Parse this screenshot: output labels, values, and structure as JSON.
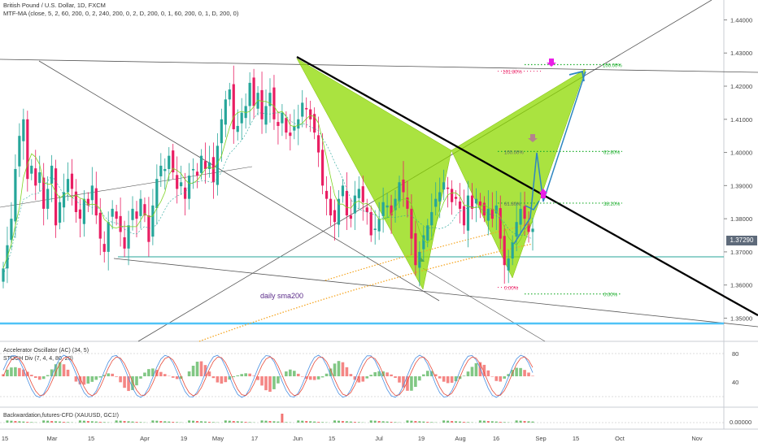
{
  "header": {
    "symbol_line": "British Pound / U.S. Dollar, 1D, FXCM",
    "indicator_line": "MTF-MA (close, 5, 2, 60, 200, 0, 2, 240, 200, 0, 2, D, 200, 0, 1, 60, 200, 0, 1, D, 200, 0)"
  },
  "price_badge": "1.37290",
  "price_axis": {
    "labels": [
      "1.44000",
      "1.43000",
      "1.42000",
      "1.41000",
      "1.40000",
      "1.39000",
      "1.38000",
      "1.37000",
      "1.36000",
      "1.35000"
    ],
    "min": 1.343,
    "max": 1.446
  },
  "time_axis": {
    "labels": [
      "15",
      "Mar",
      "15",
      "Apr",
      "19",
      "May",
      "17",
      "Jun",
      "15",
      "Jul",
      "19",
      "Aug",
      "16",
      "Sep",
      "15",
      "Oct",
      "Nov"
    ]
  },
  "annotations": {
    "sma_label": "daily sma200",
    "fib_upper": [
      {
        "label": "161.80%",
        "price": 1.4245
      },
      {
        "label": "100.00%",
        "price": 1.4265
      }
    ],
    "fib_mid": [
      {
        "label": "100.00%",
        "price": 1.4003
      },
      {
        "label": "61.80%",
        "price": 1.4003
      },
      {
        "label": "61.80%",
        "price": 1.3847
      },
      {
        "label": "38.20%",
        "price": 1.3847
      },
      {
        "label": "0.00%",
        "price": 1.3593
      },
      {
        "label": "0.00%",
        "price": 1.3573
      }
    ]
  },
  "indicators": {
    "ac_label": "Accelerator Oscillator (AC) (34, 5)",
    "stoch_label": "STOCH Div (7, 4, 4, 80, 20)",
    "ac_levels": [
      "80",
      "40"
    ],
    "bw_label": "Backwardation,futures-CFD (XAUUSD, GC1!)",
    "bw_level": "0.00000"
  },
  "colors": {
    "bull": "#26a69a",
    "bear": "#e91e63",
    "pattern_fill": "#8ed900",
    "teal_line": "#26a69a",
    "blue_line": "#4fc3f7",
    "sma_dots": "#f5a623",
    "magenta_arrow": "#e91ee6",
    "fib_green": "#1fae2f"
  },
  "chart_data": {
    "type": "candlestick",
    "title": "British Pound / U.S. Dollar, 1D, FXCM",
    "ylim": [
      1.343,
      1.446
    ],
    "x_tick_labels": [
      "15",
      "Mar",
      "15",
      "Apr",
      "19",
      "May",
      "17",
      "Jun",
      "15",
      "Jul",
      "19",
      "Aug",
      "16",
      "Sep",
      "15",
      "Oct",
      "Nov"
    ],
    "y_tick_labels": [
      "1.44000",
      "1.43000",
      "1.42000",
      "1.41000",
      "1.40000",
      "1.39000",
      "1.38000",
      "1.37000",
      "1.36000",
      "1.35000"
    ],
    "close_path": [
      1.365,
      1.372,
      1.38,
      1.395,
      1.405,
      1.41,
      1.392,
      1.396,
      1.39,
      1.394,
      1.383,
      1.389,
      1.396,
      1.378,
      1.385,
      1.388,
      1.392,
      1.389,
      1.382,
      1.38,
      1.386,
      1.384,
      1.39,
      1.381,
      1.374,
      1.37,
      1.379,
      1.383,
      1.38,
      1.376,
      1.371,
      1.378,
      1.383,
      1.38,
      1.386,
      1.381,
      1.373,
      1.384,
      1.392,
      1.396,
      1.395,
      1.399,
      1.394,
      1.389,
      1.391,
      1.386,
      1.393,
      1.395,
      1.393,
      1.399,
      1.395,
      1.397,
      1.391,
      1.402,
      1.41,
      1.416,
      1.419,
      1.407,
      1.408,
      1.412,
      1.414,
      1.421,
      1.414,
      1.418,
      1.41,
      1.414,
      1.418,
      1.41,
      1.408,
      1.412,
      1.406,
      1.405,
      1.408,
      1.41,
      1.415,
      1.413,
      1.41,
      1.406,
      1.4,
      1.39,
      1.386,
      1.381,
      1.379,
      1.386,
      1.39,
      1.381,
      1.38,
      1.387,
      1.389,
      1.385,
      1.382,
      1.375,
      1.377,
      1.38,
      1.385,
      1.384,
      1.381,
      1.386,
      1.391,
      1.388,
      1.383,
      1.374,
      1.366,
      1.37,
      1.375,
      1.378,
      1.382,
      1.386,
      1.388,
      1.391,
      1.389,
      1.385,
      1.386,
      1.383,
      1.378,
      1.387,
      1.383,
      1.386,
      1.384,
      1.381,
      1.383,
      1.38,
      1.384,
      1.374,
      1.366,
      1.368,
      1.373,
      1.379,
      1.383,
      1.38,
      1.376,
      1.377
    ],
    "pattern_points": [
      {
        "date": "Jun",
        "price": 1.4245
      },
      {
        "date": "Jul 19",
        "price": 1.3573
      },
      {
        "date": "Aug",
        "price": 1.3983
      },
      {
        "date": "Aug 16",
        "price": 1.3593
      },
      {
        "date": "Sep 15",
        "price": 1.4215
      }
    ],
    "sma_label": "daily sma200",
    "indicator_panels": [
      "Accelerator Oscillator (AC) (34, 5)",
      "STOCH Div (7, 4, 4, 80, 20)",
      "Backwardation,futures-CFD (XAUUSD, GC1!)"
    ]
  }
}
